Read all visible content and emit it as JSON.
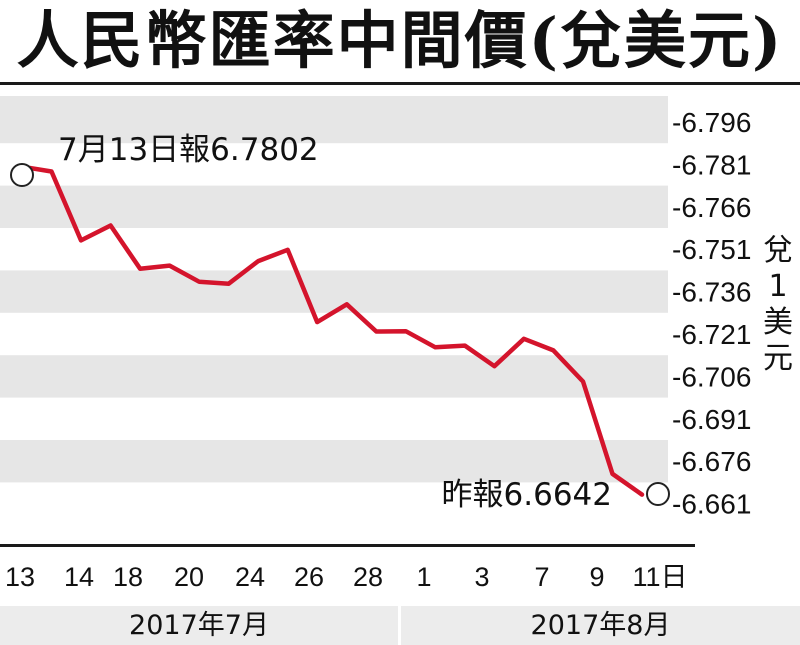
{
  "title": "人民幣匯率中間價(兌美元)",
  "chart_data": {
    "type": "line",
    "title": "人民幣匯率中間價(兌美元)",
    "ylabel_chars": [
      "兌",
      "1",
      "美",
      "元"
    ],
    "ylim": [
      6.656,
      6.801
    ],
    "yticks": [
      "-6.796",
      "-6.781",
      "-6.766",
      "-6.751",
      "-6.736",
      "-6.721",
      "-6.706",
      "-6.691",
      "-6.676",
      "-6.661"
    ],
    "x_tick_labels": [
      "13",
      "14",
      "18",
      "20",
      "24",
      "26",
      "28",
      "1",
      "3",
      "7",
      "9",
      "11日"
    ],
    "months": [
      "2017年7月",
      "2017年8月"
    ],
    "series": [
      {
        "color": "#d4142c",
        "values": [
          6.7802,
          6.7785,
          6.7541,
          6.7594,
          6.7441,
          6.7452,
          6.7395,
          6.7388,
          6.7468,
          6.7508,
          6.7252,
          6.7315,
          6.7219,
          6.722,
          6.7163,
          6.7169,
          6.7096,
          6.7193,
          6.7152,
          6.7042,
          6.6715,
          6.6642
        ]
      }
    ],
    "annotations": {
      "start": "7月13日報6.7802",
      "end": "昨報6.6642"
    },
    "grid": "alternating horizontal bands"
  }
}
